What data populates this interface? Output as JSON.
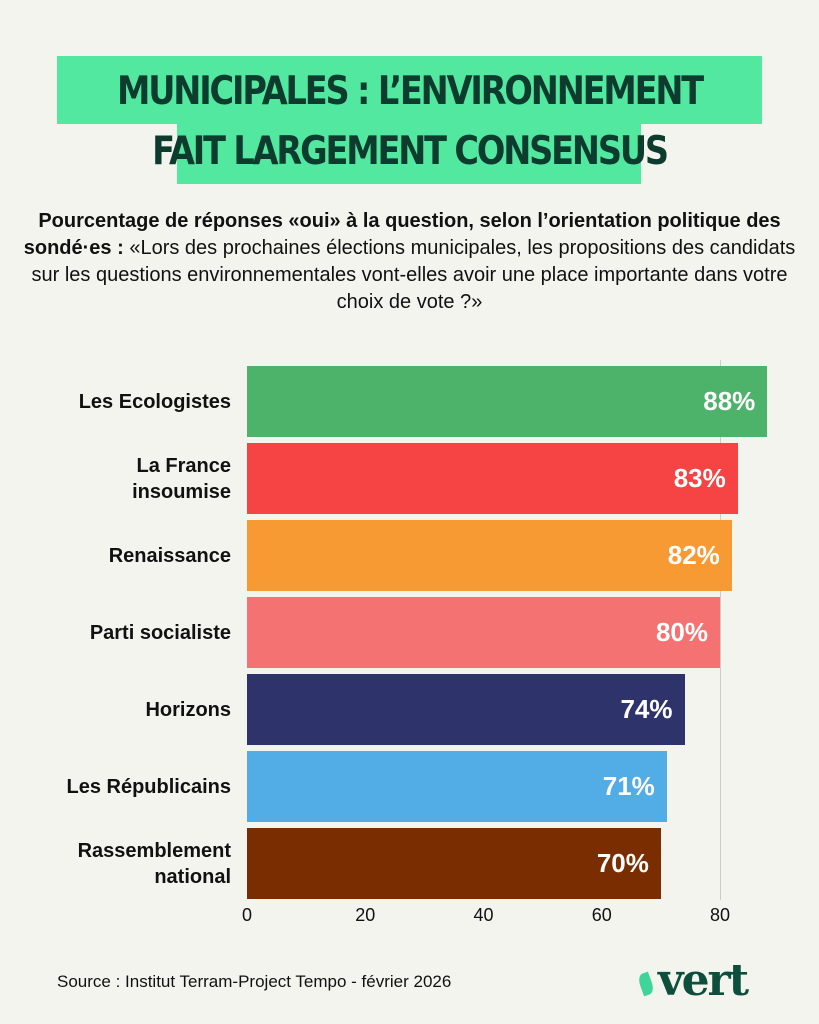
{
  "title": "MUNICIPALES : L’ENVIRONNEMENT FAIT LARGEMENT CONSENSUS",
  "subtitle_bold": "Pourcentage de réponses «oui» à la question, selon l’orientation politique des sondé·es :",
  "subtitle_text": "«Lors des prochaines élections municipales, les propositions des candidats sur les questions environnementales vont-elles avoir une place importante dans votre choix de vote ?»",
  "source": "Source : Institut Terram-Project Tempo - février 2026",
  "logo": "vert",
  "chart_data": {
    "type": "bar",
    "orientation": "horizontal",
    "categories": [
      "Les Ecologistes",
      "La France insoumise",
      "Renaissance",
      "Parti socialiste",
      "Horizons",
      "Les Républicains",
      "Rassemblement national"
    ],
    "values": [
      88,
      83,
      82,
      80,
      74,
      71,
      70
    ],
    "labels": [
      "88%",
      "83%",
      "82%",
      "80%",
      "74%",
      "71%",
      "70%"
    ],
    "colors": [
      "#4db36a",
      "#f64444",
      "#f89a33",
      "#f47272",
      "#2f336b",
      "#52ace6",
      "#7a2e00"
    ],
    "xticks": [
      "0",
      "20",
      "40",
      "60",
      "80"
    ],
    "xlim": [
      0,
      88
    ],
    "grid": true
  }
}
